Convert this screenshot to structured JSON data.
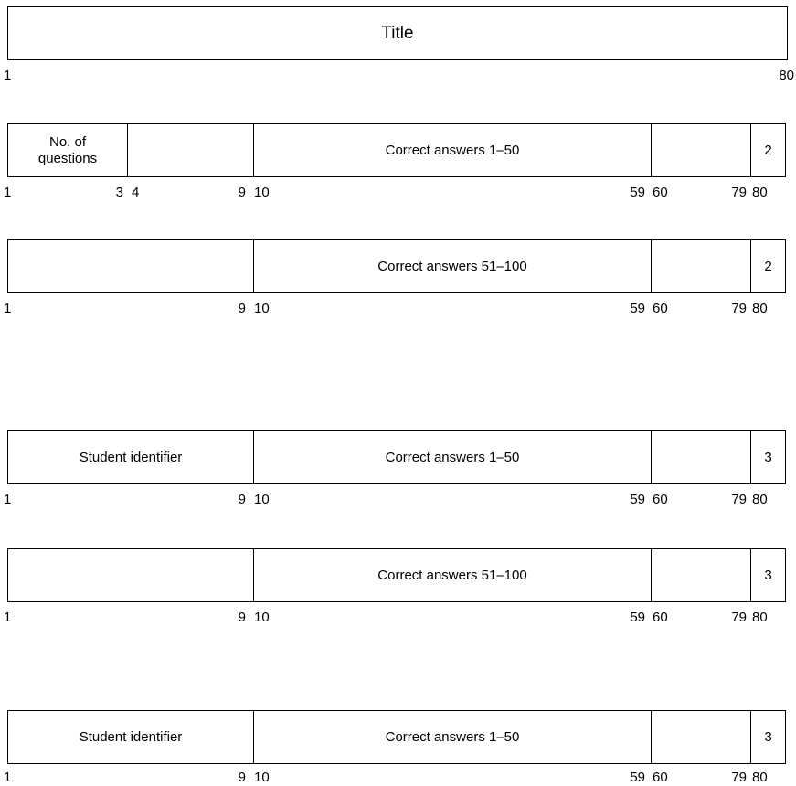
{
  "title_card": {
    "title": "Title",
    "col_start": "1",
    "col_end": "80"
  },
  "card_answers_1": {
    "no_questions": "No. of questions",
    "answers": "Correct answers 1–50",
    "card_type": "2",
    "cols": [
      "1",
      "3",
      "4",
      "9",
      "10",
      "59",
      "60",
      "79",
      "80"
    ]
  },
  "card_answers_2": {
    "answers": "Correct answers 51–100",
    "card_type": "2",
    "cols": [
      "1",
      "9",
      "10",
      "59",
      "60",
      "79",
      "80"
    ]
  },
  "student_card_1a": {
    "identifier": "Student identifier",
    "answers": "Correct answers 1–50",
    "card_type": "3",
    "cols": [
      "1",
      "9",
      "10",
      "59",
      "60",
      "79",
      "80"
    ]
  },
  "student_card_1b": {
    "answers": "Correct answers 51–100",
    "card_type": "3",
    "cols": [
      "1",
      "9",
      "10",
      "59",
      "60",
      "79",
      "80"
    ]
  },
  "student_card_2a": {
    "identifier": "Student identifier",
    "answers": "Correct answers 1–50",
    "card_type": "3",
    "cols": [
      "1",
      "9",
      "10",
      "59",
      "60",
      "79",
      "80"
    ]
  }
}
